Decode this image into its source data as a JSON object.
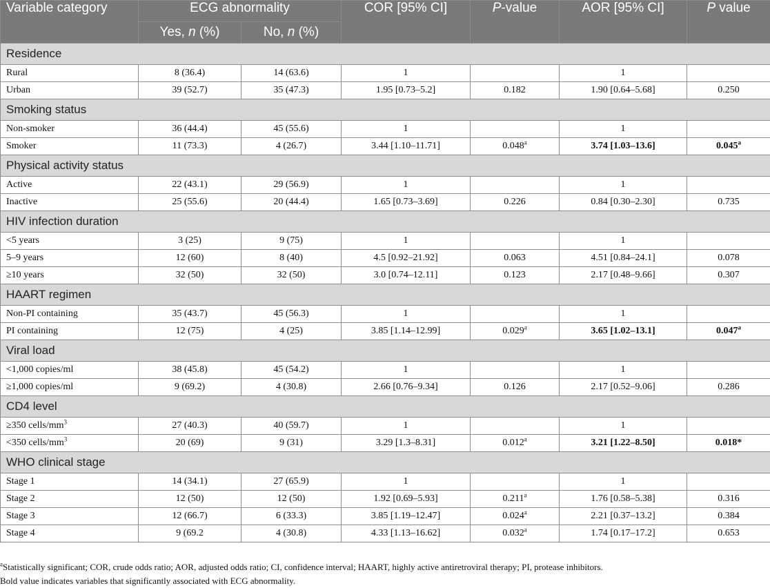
{
  "header": {
    "variable_category": "Variable category",
    "ecg_abnormality": "ECG abnormality",
    "yes_label": "Yes, ",
    "no_label": "No, ",
    "n_italic": "n",
    "pct": " (%)",
    "cor": "COR [95% CI]",
    "p_value_italic": "P",
    "p_value_rest": "-value",
    "aor": "AOR [95% CI]",
    "p_value2_italic": "P",
    "p_value2_rest": " value"
  },
  "sections": [
    {
      "title": "Residence",
      "rows": [
        {
          "label": "Rural",
          "yes": "8 (36.4)",
          "no": "14 (63.6)",
          "cor": "1",
          "p": "",
          "aor": "1",
          "p2": ""
        },
        {
          "label": "Urban",
          "yes": "39 (52.7)",
          "no": "35 (47.3)",
          "cor": "1.95 [0.73–5.2]",
          "p": "0.182",
          "aor": "1.90 [0.64–5.68]",
          "p2": "0.250"
        }
      ]
    },
    {
      "title": "Smoking status",
      "rows": [
        {
          "label": "Non-smoker",
          "yes": "36 (44.4)",
          "no": "45 (55.6)",
          "cor": "1",
          "p": "",
          "aor": "1",
          "p2": ""
        },
        {
          "label": "Smoker",
          "yes": "11 (73.3)",
          "no": "4 (26.7)",
          "cor": "3.44 [1.10–11.71]",
          "p": "0.048",
          "p_sup": "a",
          "aor": "3.74 [1.03–13.6]",
          "aor_bold": true,
          "p2": "0.045",
          "p2_sup": "a",
          "p2_bold": true
        }
      ]
    },
    {
      "title": "Physical activity status",
      "rows": [
        {
          "label": "Active",
          "yes": "22 (43.1)",
          "no": "29 (56.9)",
          "cor": "1",
          "p": "",
          "aor": "1",
          "p2": ""
        },
        {
          "label": "Inactive",
          "yes": "25 (55.6)",
          "no": "20 (44.4)",
          "cor": "1.65 [0.73–3.69]",
          "p": "0.226",
          "aor": "0.84 [0.30–2.30]",
          "p2": "0.735"
        }
      ]
    },
    {
      "title": "HIV infection duration",
      "rows": [
        {
          "label": "<5 years",
          "yes": "3 (25)",
          "no": "9 (75)",
          "cor": "1",
          "p": "",
          "aor": "1",
          "p2": ""
        },
        {
          "label": "5–9 years",
          "yes": "12 (60)",
          "no": "8 (40)",
          "cor": "4.5 [0.92–21.92]",
          "p": "0.063",
          "aor": "4.51 [0.84–24.1]",
          "p2": "0.078"
        },
        {
          "label": "≥10 years",
          "yes": "32 (50)",
          "no": "32 (50)",
          "cor": "3.0 [0.74–12.11]",
          "p": "0.123",
          "aor": "2.17 [0.48–9.66]",
          "p2": "0.307"
        }
      ]
    },
    {
      "title": "HAART regimen",
      "rows": [
        {
          "label": "Non-PI containing",
          "yes": "35 (43.7)",
          "no": "45 (56.3)",
          "cor": "1",
          "p": "",
          "aor": "1",
          "p2": ""
        },
        {
          "label": "PI containing",
          "yes": "12 (75)",
          "no": "4 (25)",
          "cor": "3.85 [1.14–12.99]",
          "p": "0.029",
          "p_sup": "a",
          "aor": "3.65 [1.02–13.1]",
          "aor_bold": true,
          "p2": "0.047",
          "p2_sup": "a",
          "p2_bold": true
        }
      ]
    },
    {
      "title": "Viral load",
      "rows": [
        {
          "label": "<1,000 copies/ml",
          "yes": "38 (45.8)",
          "no": "45 (54.2)",
          "cor": "1",
          "p": "",
          "aor": "1",
          "p2": ""
        },
        {
          "label": "≥1,000 copies/ml",
          "yes": "9 (69.2)",
          "no": "4 (30.8)",
          "cor": "2.66 [0.76–9.34]",
          "p": "0.126",
          "aor": "2.17 [0.52–9.06]",
          "p2": "0.286"
        }
      ]
    },
    {
      "title": "CD4 level",
      "rows": [
        {
          "label": "≥350 cells/mm",
          "label_sup": "3",
          "yes": "27 (40.3)",
          "no": "40 (59.7)",
          "cor": "1",
          "p": "",
          "aor": "1",
          "p2": ""
        },
        {
          "label": "<350 cells/mm",
          "label_sup": "3",
          "yes": "20 (69)",
          "no": "9 (31)",
          "cor": "3.29 [1.3–8.31]",
          "p": "0.012",
          "p_sup": "a",
          "aor": "3.21 [1.22–8.50]",
          "aor_bold": true,
          "p2": "0.018*",
          "p2_bold": true
        }
      ]
    },
    {
      "title": "WHO clinical stage",
      "rows": [
        {
          "label": "Stage 1",
          "yes": "14 (34.1)",
          "no": "27 (65.9)",
          "cor": "1",
          "p": "",
          "aor": "1",
          "p2": ""
        },
        {
          "label": "Stage 2",
          "yes": "12 (50)",
          "no": "12 (50)",
          "cor": "1.92 [0.69–5.93]",
          "p": "0.211",
          "p_sup": "a",
          "aor": "1.76 [0.58–5.38]",
          "p2": "0.316"
        },
        {
          "label": "Stage 3",
          "yes": "12 (66.7)",
          "no": "6 (33.3)",
          "cor": "3.85 [1.19–12.47]",
          "p": "0.024",
          "p_sup": "a",
          "aor": "2.21 [0.37–13.2]",
          "p2": "0.384"
        },
        {
          "label": "Stage 4",
          "yes": "9 (69.2",
          "no": "4 (30.8)",
          "cor": "4.33 [1.13–16.62]",
          "p": "0.032",
          "p_sup": "a",
          "aor": "1.74 [0.17–17.2]",
          "p2": "0.653"
        }
      ]
    }
  ],
  "footnotes": {
    "note1_sup": "a",
    "note1": "Statistically significant; COR, crude odds ratio; AOR, adjusted odds ratio; CI, confidence interval; HAART, highly active antiretroviral therapy; PI, protease inhibitors.",
    "note2": "Bold value indicates variables that significantly associated with ECG abnormality."
  }
}
